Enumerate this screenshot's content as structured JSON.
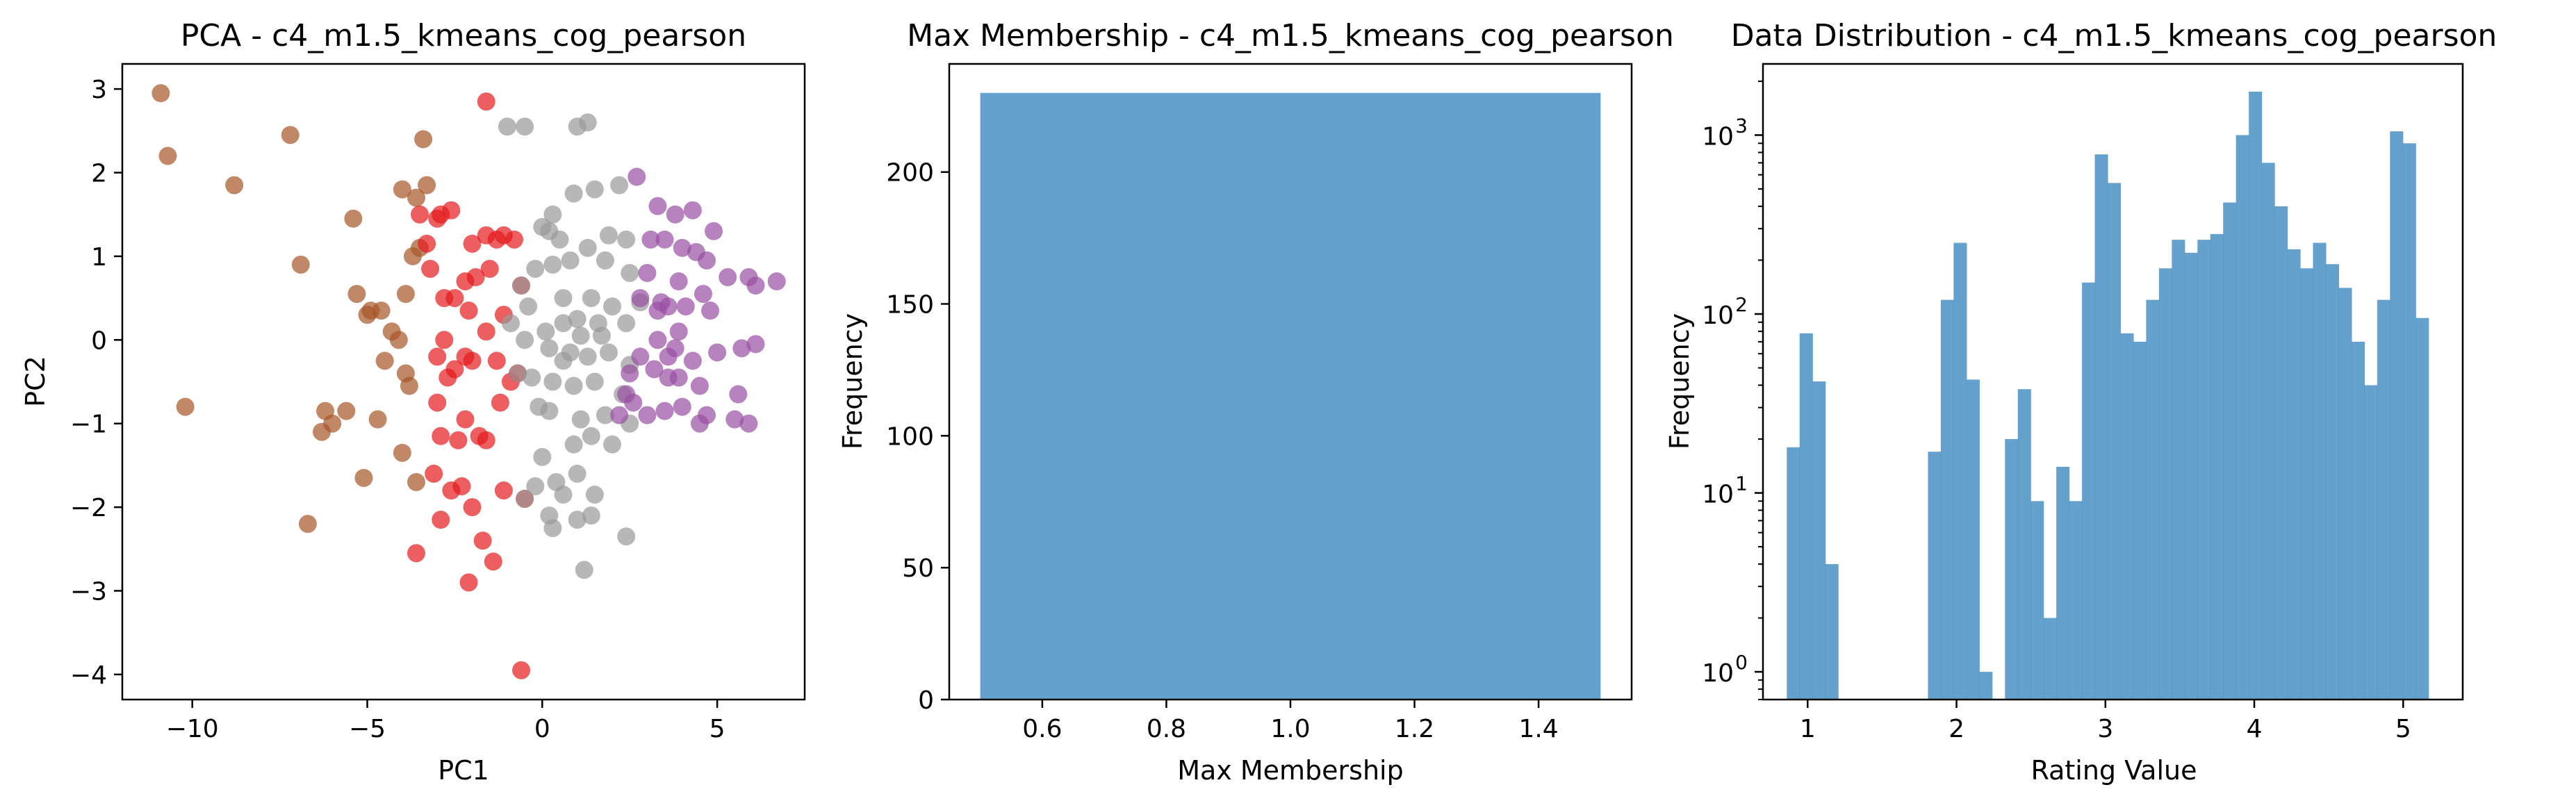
{
  "chart_data": [
    {
      "type": "scatter",
      "title": "PCA - c4_m1.5_kmeans_cog_pearson",
      "xlabel": "PC1",
      "ylabel": "PC2",
      "xlim": [
        -12,
        7.5
      ],
      "ylim": [
        -4.3,
        3.3
      ],
      "xticks": [
        -10,
        -5,
        0,
        5
      ],
      "yticks": [
        -4,
        -3,
        -2,
        -1,
        0,
        1,
        2,
        3
      ],
      "xtick_labels": [
        "−10",
        "−5",
        "0",
        "5"
      ],
      "ytick_labels": [
        "−4",
        "−3",
        "−2",
        "−1",
        "0",
        "1",
        "2",
        "3"
      ],
      "series": [
        {
          "color": "#a65628",
          "points": [
            [
              -10.9,
              2.95
            ],
            [
              -10.7,
              2.2
            ],
            [
              -8.8,
              1.85
            ],
            [
              -7.2,
              2.45
            ],
            [
              -6.9,
              0.9
            ],
            [
              -10.2,
              -0.8
            ],
            [
              -6.7,
              -2.2
            ],
            [
              -6.2,
              -0.85
            ],
            [
              -6.0,
              -1.0
            ],
            [
              -6.3,
              -1.1
            ],
            [
              -5.6,
              -0.85
            ],
            [
              -5.4,
              1.45
            ],
            [
              -5.3,
              0.55
            ],
            [
              -5.0,
              0.3
            ],
            [
              -4.9,
              0.35
            ],
            [
              -4.6,
              0.35
            ],
            [
              -4.5,
              -0.25
            ],
            [
              -4.3,
              0.1
            ],
            [
              -4.7,
              -0.95
            ],
            [
              -4.1,
              0.0
            ],
            [
              -3.9,
              -0.4
            ],
            [
              -4.0,
              -1.35
            ],
            [
              -3.8,
              -0.55
            ],
            [
              -3.7,
              1.0
            ],
            [
              -3.5,
              1.1
            ],
            [
              -3.9,
              0.55
            ],
            [
              -4.0,
              1.8
            ],
            [
              -3.3,
              1.85
            ],
            [
              -3.4,
              2.4
            ],
            [
              -3.6,
              1.7
            ],
            [
              -5.1,
              -1.65
            ],
            [
              -3.6,
              -1.7
            ]
          ]
        },
        {
          "color": "#e41a1c",
          "points": [
            [
              -1.6,
              2.85
            ],
            [
              -3.6,
              -2.55
            ],
            [
              -2.1,
              -2.9
            ],
            [
              -3.1,
              -1.6
            ],
            [
              -2.9,
              -2.15
            ],
            [
              -2.6,
              -1.8
            ],
            [
              -2.3,
              -1.75
            ],
            [
              -2.0,
              -2.0
            ],
            [
              -1.7,
              -2.4
            ],
            [
              -1.4,
              -2.65
            ],
            [
              -1.1,
              -1.8
            ],
            [
              -0.6,
              -3.95
            ],
            [
              -0.5,
              -1.9
            ],
            [
              -1.6,
              -1.2
            ],
            [
              -2.9,
              -1.15
            ],
            [
              -3.0,
              -0.75
            ],
            [
              -2.7,
              -0.45
            ],
            [
              -2.5,
              -0.35
            ],
            [
              -3.0,
              -0.2
            ],
            [
              -2.8,
              0.0
            ],
            [
              -2.2,
              -0.2
            ],
            [
              -2.0,
              -0.25
            ],
            [
              -1.6,
              0.1
            ],
            [
              -1.3,
              -0.25
            ],
            [
              -1.2,
              -0.75
            ],
            [
              -0.7,
              -0.4
            ],
            [
              -0.9,
              -0.5
            ],
            [
              -1.1,
              0.3
            ],
            [
              -2.1,
              0.35
            ],
            [
              -2.5,
              0.5
            ],
            [
              -2.8,
              0.5
            ],
            [
              -2.2,
              0.7
            ],
            [
              -1.5,
              0.85
            ],
            [
              -2.0,
              1.15
            ],
            [
              -1.6,
              1.25
            ],
            [
              -1.3,
              1.2
            ],
            [
              -1.1,
              1.25
            ],
            [
              -0.8,
              1.2
            ],
            [
              -0.6,
              0.65
            ],
            [
              -1.9,
              0.75
            ],
            [
              -3.2,
              0.85
            ],
            [
              -3.3,
              1.15
            ],
            [
              -3.5,
              1.5
            ],
            [
              -2.9,
              1.5
            ],
            [
              -2.6,
              1.55
            ],
            [
              -3.0,
              1.45
            ],
            [
              -2.4,
              -1.2
            ],
            [
              -1.8,
              -1.15
            ],
            [
              -2.2,
              -0.95
            ]
          ]
        },
        {
          "color": "#999999",
          "points": [
            [
              -0.5,
              2.55
            ],
            [
              -1.0,
              2.55
            ],
            [
              1.0,
              2.55
            ],
            [
              1.3,
              2.6
            ],
            [
              1.5,
              1.8
            ],
            [
              2.2,
              1.85
            ],
            [
              0.9,
              1.75
            ],
            [
              0.3,
              1.5
            ],
            [
              0.2,
              1.3
            ],
            [
              0.0,
              1.35
            ],
            [
              0.5,
              1.2
            ],
            [
              1.3,
              1.1
            ],
            [
              1.9,
              1.25
            ],
            [
              2.4,
              1.2
            ],
            [
              1.8,
              0.95
            ],
            [
              2.5,
              0.8
            ],
            [
              0.8,
              0.95
            ],
            [
              0.3,
              0.9
            ],
            [
              -0.2,
              0.85
            ],
            [
              0.6,
              0.5
            ],
            [
              1.4,
              0.5
            ],
            [
              2.0,
              0.4
            ],
            [
              2.8,
              0.45
            ],
            [
              -0.6,
              0.65
            ],
            [
              -0.4,
              0.4
            ],
            [
              0.1,
              0.1
            ],
            [
              0.6,
              0.2
            ],
            [
              1.0,
              0.25
            ],
            [
              1.6,
              0.2
            ],
            [
              2.4,
              0.2
            ],
            [
              -0.9,
              0.2
            ],
            [
              -0.5,
              0.0
            ],
            [
              0.2,
              -0.1
            ],
            [
              0.8,
              -0.15
            ],
            [
              1.3,
              -0.2
            ],
            [
              1.9,
              -0.15
            ],
            [
              2.5,
              -0.3
            ],
            [
              -0.7,
              -0.4
            ],
            [
              -0.3,
              -0.45
            ],
            [
              0.3,
              -0.5
            ],
            [
              0.9,
              -0.55
            ],
            [
              1.5,
              -0.5
            ],
            [
              2.3,
              -0.65
            ],
            [
              -0.1,
              -0.8
            ],
            [
              0.2,
              -0.85
            ],
            [
              1.1,
              -0.95
            ],
            [
              1.8,
              -0.9
            ],
            [
              2.5,
              -1.0
            ],
            [
              0.9,
              -1.25
            ],
            [
              1.4,
              -1.15
            ],
            [
              2.0,
              -1.25
            ],
            [
              0.0,
              -1.4
            ],
            [
              0.4,
              -1.7
            ],
            [
              0.6,
              -1.85
            ],
            [
              1.0,
              -1.6
            ],
            [
              1.5,
              -1.85
            ],
            [
              0.2,
              -2.1
            ],
            [
              0.3,
              -2.25
            ],
            [
              1.0,
              -2.15
            ],
            [
              1.4,
              -2.1
            ],
            [
              2.4,
              -2.35
            ],
            [
              1.2,
              -2.75
            ],
            [
              -0.2,
              -1.75
            ],
            [
              -0.5,
              -1.9
            ],
            [
              1.1,
              0.05
            ],
            [
              1.7,
              0.05
            ],
            [
              0.6,
              -0.25
            ]
          ]
        },
        {
          "color": "#984ea3",
          "points": [
            [
              2.7,
              1.95
            ],
            [
              3.3,
              1.6
            ],
            [
              3.8,
              1.5
            ],
            [
              4.3,
              1.55
            ],
            [
              4.9,
              1.3
            ],
            [
              4.0,
              1.1
            ],
            [
              3.1,
              1.2
            ],
            [
              3.5,
              1.2
            ],
            [
              4.4,
              1.05
            ],
            [
              4.7,
              0.95
            ],
            [
              5.3,
              0.75
            ],
            [
              5.9,
              0.75
            ],
            [
              6.1,
              0.65
            ],
            [
              6.7,
              0.7
            ],
            [
              3.0,
              0.8
            ],
            [
              3.9,
              0.7
            ],
            [
              2.8,
              0.5
            ],
            [
              3.4,
              0.45
            ],
            [
              3.6,
              0.4
            ],
            [
              4.1,
              0.4
            ],
            [
              4.6,
              0.55
            ],
            [
              3.3,
              0.35
            ],
            [
              3.9,
              0.1
            ],
            [
              4.8,
              0.35
            ],
            [
              3.3,
              0.0
            ],
            [
              3.6,
              -0.2
            ],
            [
              3.8,
              -0.1
            ],
            [
              4.3,
              -0.25
            ],
            [
              5.0,
              -0.15
            ],
            [
              5.7,
              -0.1
            ],
            [
              6.1,
              -0.05
            ],
            [
              3.2,
              -0.35
            ],
            [
              3.9,
              -0.45
            ],
            [
              4.5,
              -0.55
            ],
            [
              2.5,
              -0.4
            ],
            [
              2.8,
              -0.2
            ],
            [
              2.4,
              -0.65
            ],
            [
              2.6,
              -0.75
            ],
            [
              3.5,
              -0.85
            ],
            [
              4.0,
              -0.8
            ],
            [
              4.7,
              -0.9
            ],
            [
              5.6,
              -0.65
            ],
            [
              2.2,
              -0.9
            ],
            [
              3.0,
              -0.9
            ],
            [
              4.5,
              -1.0
            ],
            [
              5.5,
              -0.95
            ],
            [
              5.9,
              -1.0
            ],
            [
              3.6,
              -0.45
            ]
          ]
        }
      ]
    },
    {
      "type": "bar",
      "title": "Max Membership - c4_m1.5_kmeans_cog_pearson",
      "xlabel": "Max Membership",
      "ylabel": "Frequency",
      "xlim": [
        0.45,
        1.55
      ],
      "ylim": [
        0,
        241
      ],
      "xticks": [
        0.6,
        0.8,
        1.0,
        1.2,
        1.4
      ],
      "yticks": [
        0,
        50,
        100,
        150,
        200
      ],
      "xtick_labels": [
        "0.6",
        "0.8",
        "1.0",
        "1.2",
        "1.4"
      ],
      "ytick_labels": [
        "0",
        "50",
        "100",
        "150",
        "200"
      ],
      "color": "#4a90c4",
      "bins": [
        {
          "x0": 0.5,
          "x1": 1.5,
          "value": 230
        }
      ]
    },
    {
      "type": "bar",
      "title": "Data Distribution - c4_m1.5_kmeans_cog_pearson",
      "xlabel": "Rating Value",
      "ylabel": "Frequency",
      "yscale": "log",
      "xlim": [
        0.7,
        5.4
      ],
      "ylim": [
        0.7,
        2500
      ],
      "xticks": [
        1,
        2,
        3,
        4,
        5
      ],
      "xtick_labels": [
        "1",
        "2",
        "3",
        "4",
        "5"
      ],
      "yticks": [
        1,
        10,
        100,
        1000
      ],
      "ytick_base": "10",
      "ytick_exponents": [
        "0",
        "1",
        "2",
        "3"
      ],
      "color": "#4a90c4",
      "bin_start": 0.86,
      "bin_width": 0.0862,
      "values": [
        18,
        78,
        42,
        4,
        0,
        0,
        0,
        0,
        0,
        0,
        0,
        17,
        120,
        250,
        43,
        1,
        0,
        20,
        38,
        9,
        2,
        14,
        9,
        150,
        780,
        540,
        78,
        70,
        120,
        180,
        260,
        220,
        260,
        280,
        420,
        1000,
        1750,
        700,
        400,
        230,
        180,
        250,
        190,
        140,
        70,
        40,
        120,
        1050,
        900,
        95
      ]
    }
  ]
}
